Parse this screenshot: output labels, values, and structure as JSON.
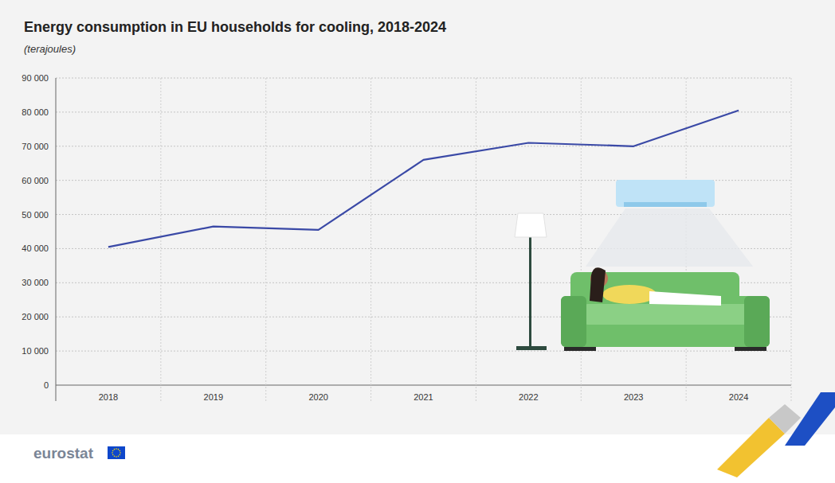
{
  "chart_data": {
    "type": "line",
    "title": "Energy consumption in EU households for cooling, 2018-2024",
    "subtitle": "(terajoules)",
    "categories": [
      "2018",
      "2019",
      "2020",
      "2021",
      "2022",
      "2023",
      "2024"
    ],
    "values": [
      40500,
      46500,
      45500,
      66000,
      71000,
      70000,
      80500
    ],
    "color": "#3a49a6",
    "ylim": [
      0,
      90000
    ],
    "yticks": [
      0,
      {
        "value": 10000,
        "label": "10 000"
      },
      {
        "value": 20000,
        "label": "20 000"
      },
      {
        "value": 30000,
        "label": "30 000"
      },
      {
        "value": 40000,
        "label": "40 000"
      },
      {
        "value": 50000,
        "label": "50 000"
      },
      {
        "value": 60000,
        "label": "60 000"
      },
      {
        "value": 70000,
        "label": "70 000"
      },
      {
        "value": 80000,
        "label": "80 000"
      },
      {
        "value": 90000,
        "label": "90 000"
      }
    ],
    "grid": true,
    "footer": "eurostat"
  }
}
